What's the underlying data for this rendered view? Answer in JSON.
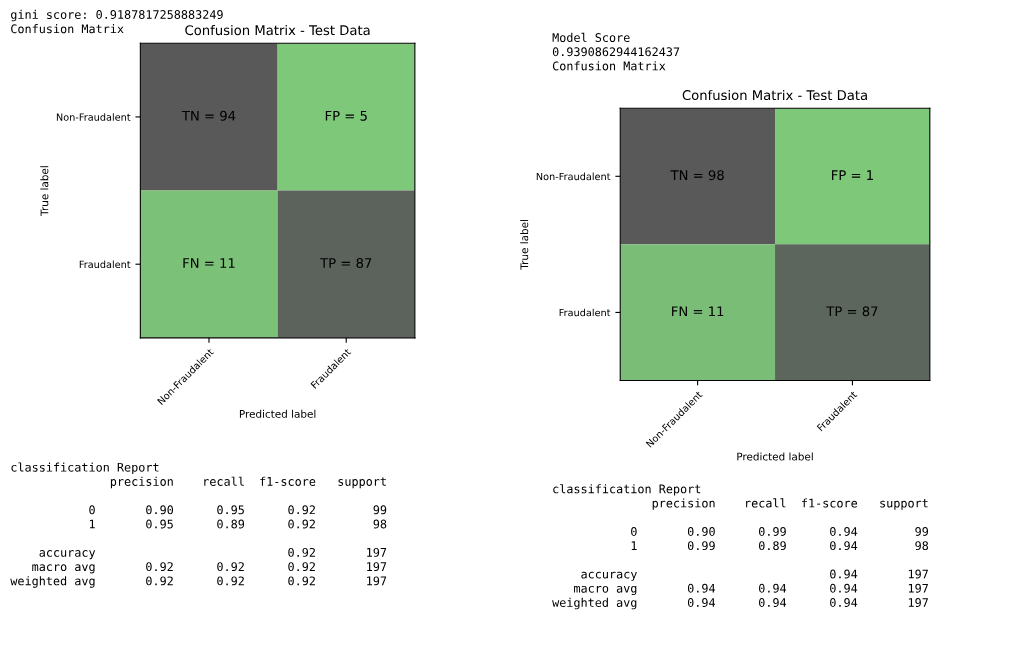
{
  "chart_data": [
    {
      "type": "heatmap",
      "title": "Confusion Matrix - Test Data",
      "xlabel": "Predicted label",
      "ylabel": "True label",
      "categories": [
        "Non-Fraudalent",
        "Fraudalent"
      ],
      "y_categories": [
        "Non-Fraudalent",
        "Fraudalent"
      ],
      "cells": [
        [
          94,
          5
        ],
        [
          11,
          87
        ]
      ],
      "cell_labels": [
        [
          "TN = 94",
          "FP = 5"
        ],
        [
          "FN = 11",
          "TP = 87"
        ]
      ],
      "colors": [
        "#7ec87a",
        "#595959"
      ],
      "annotations": [
        "gini score: 0.9187817258883249\nConfusion Matrix",
        "classification Report\n              precision    recall  f1-score   support\n\n           0       0.90      0.95      0.92        99\n           1       0.95      0.89      0.92        98\n\n    accuracy                           0.92       197\n   macro avg       0.92      0.92      0.92       197\nweighted avg       0.92      0.92      0.92       197"
      ]
    },
    {
      "type": "heatmap",
      "title": "Confusion Matrix - Test Data",
      "xlabel": "Predicted label",
      "ylabel": "True label",
      "categories": [
        "Non-Fraudalent",
        "Fraudalent"
      ],
      "y_categories": [
        "Non-Fraudalent",
        "Fraudalent"
      ],
      "cells": [
        [
          98,
          1
        ],
        [
          11,
          87
        ]
      ],
      "cell_labels": [
        [
          "TN = 98",
          "FP = 1"
        ],
        [
          "FN = 11",
          "TP = 87"
        ]
      ],
      "colors": [
        "#7ec87a",
        "#595959"
      ],
      "annotations": [
        "Model Score\n0.9390862944162437\nConfusion Matrix",
        "classification Report\n              precision    recall  f1-score   support\n\n           0       0.90      0.99      0.94        99\n           1       0.99      0.89      0.94        98\n\n    accuracy                           0.94       197\n   macro avg       0.94      0.94      0.94       197\nweighted avg       0.94      0.94      0.94       197"
      ]
    }
  ]
}
